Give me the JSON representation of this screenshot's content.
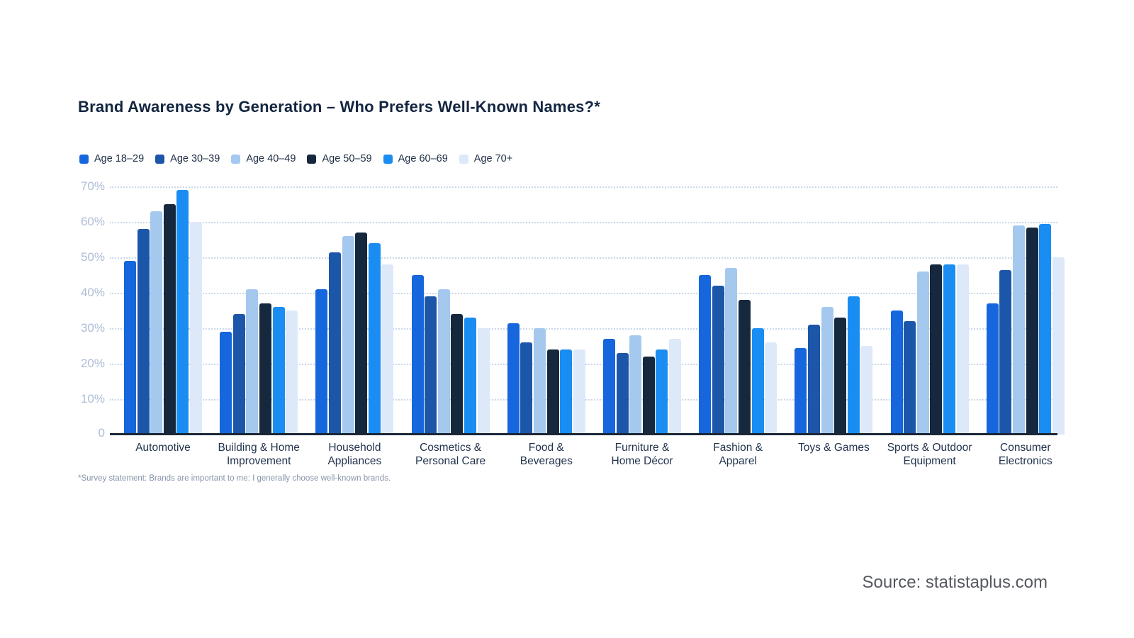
{
  "title": "Brand Awareness by Generation – Who Prefers Well-Known Names?*",
  "footnote": "*Survey statement: Brands are important to me: I generally choose well-known brands.",
  "source": "Source: statistaplus.com",
  "colors": {
    "series": [
      "#1666dd",
      "#1c56a9",
      "#a5c8ef",
      "#16283e",
      "#1a8df3",
      "#dde9f9"
    ],
    "grid": "#c9d7ec",
    "axis": "#1b2736",
    "tick_label": "#aebdd6",
    "title": "#132540",
    "category_label": "#23344e",
    "footnote": "#8795ab",
    "source": "#55595f"
  },
  "chart_data": {
    "type": "bar",
    "title": "Brand Awareness by Generation – Who Prefers Well-Known Names?*",
    "xlabel": "",
    "ylabel": "",
    "ylim": [
      0,
      70
    ],
    "ytick_labels": [
      "0",
      "10%",
      "20%",
      "30%",
      "40%",
      "50%",
      "60%",
      "70%"
    ],
    "grid": "horizontal-dotted",
    "legend_position": "top-left",
    "categories": [
      "Automotive",
      "Building & Home\nImprovement",
      "Household\nAppliances",
      "Cosmetics &\nPersonal Care",
      "Food &\nBeverages",
      "Furniture &\nHome Décor",
      "Fashion &\nApparel",
      "Toys & Games",
      "Sports & Outdoor\nEquipment",
      "Consumer\nElectronics"
    ],
    "series": [
      {
        "name": "Age 18–29",
        "values": [
          49,
          29,
          41,
          45,
          31.5,
          27,
          45,
          24.5,
          35,
          37
        ]
      },
      {
        "name": "Age 30–39",
        "values": [
          58,
          34,
          51.5,
          39,
          26,
          23,
          42,
          31,
          32,
          46.5
        ]
      },
      {
        "name": "Age 40–49",
        "values": [
          63,
          41,
          56,
          41,
          30,
          28,
          47,
          36,
          46,
          59
        ]
      },
      {
        "name": "Age 50–59",
        "values": [
          65,
          37,
          57,
          34,
          24,
          22,
          38,
          33,
          48,
          58.5
        ]
      },
      {
        "name": "Age 60–69",
        "values": [
          69,
          36,
          54,
          33,
          24,
          24,
          30,
          39,
          48,
          59.5
        ]
      },
      {
        "name": "Age 70+",
        "values": [
          60,
          35,
          48,
          30,
          24,
          27,
          26,
          25,
          48,
          50
        ]
      }
    ]
  }
}
